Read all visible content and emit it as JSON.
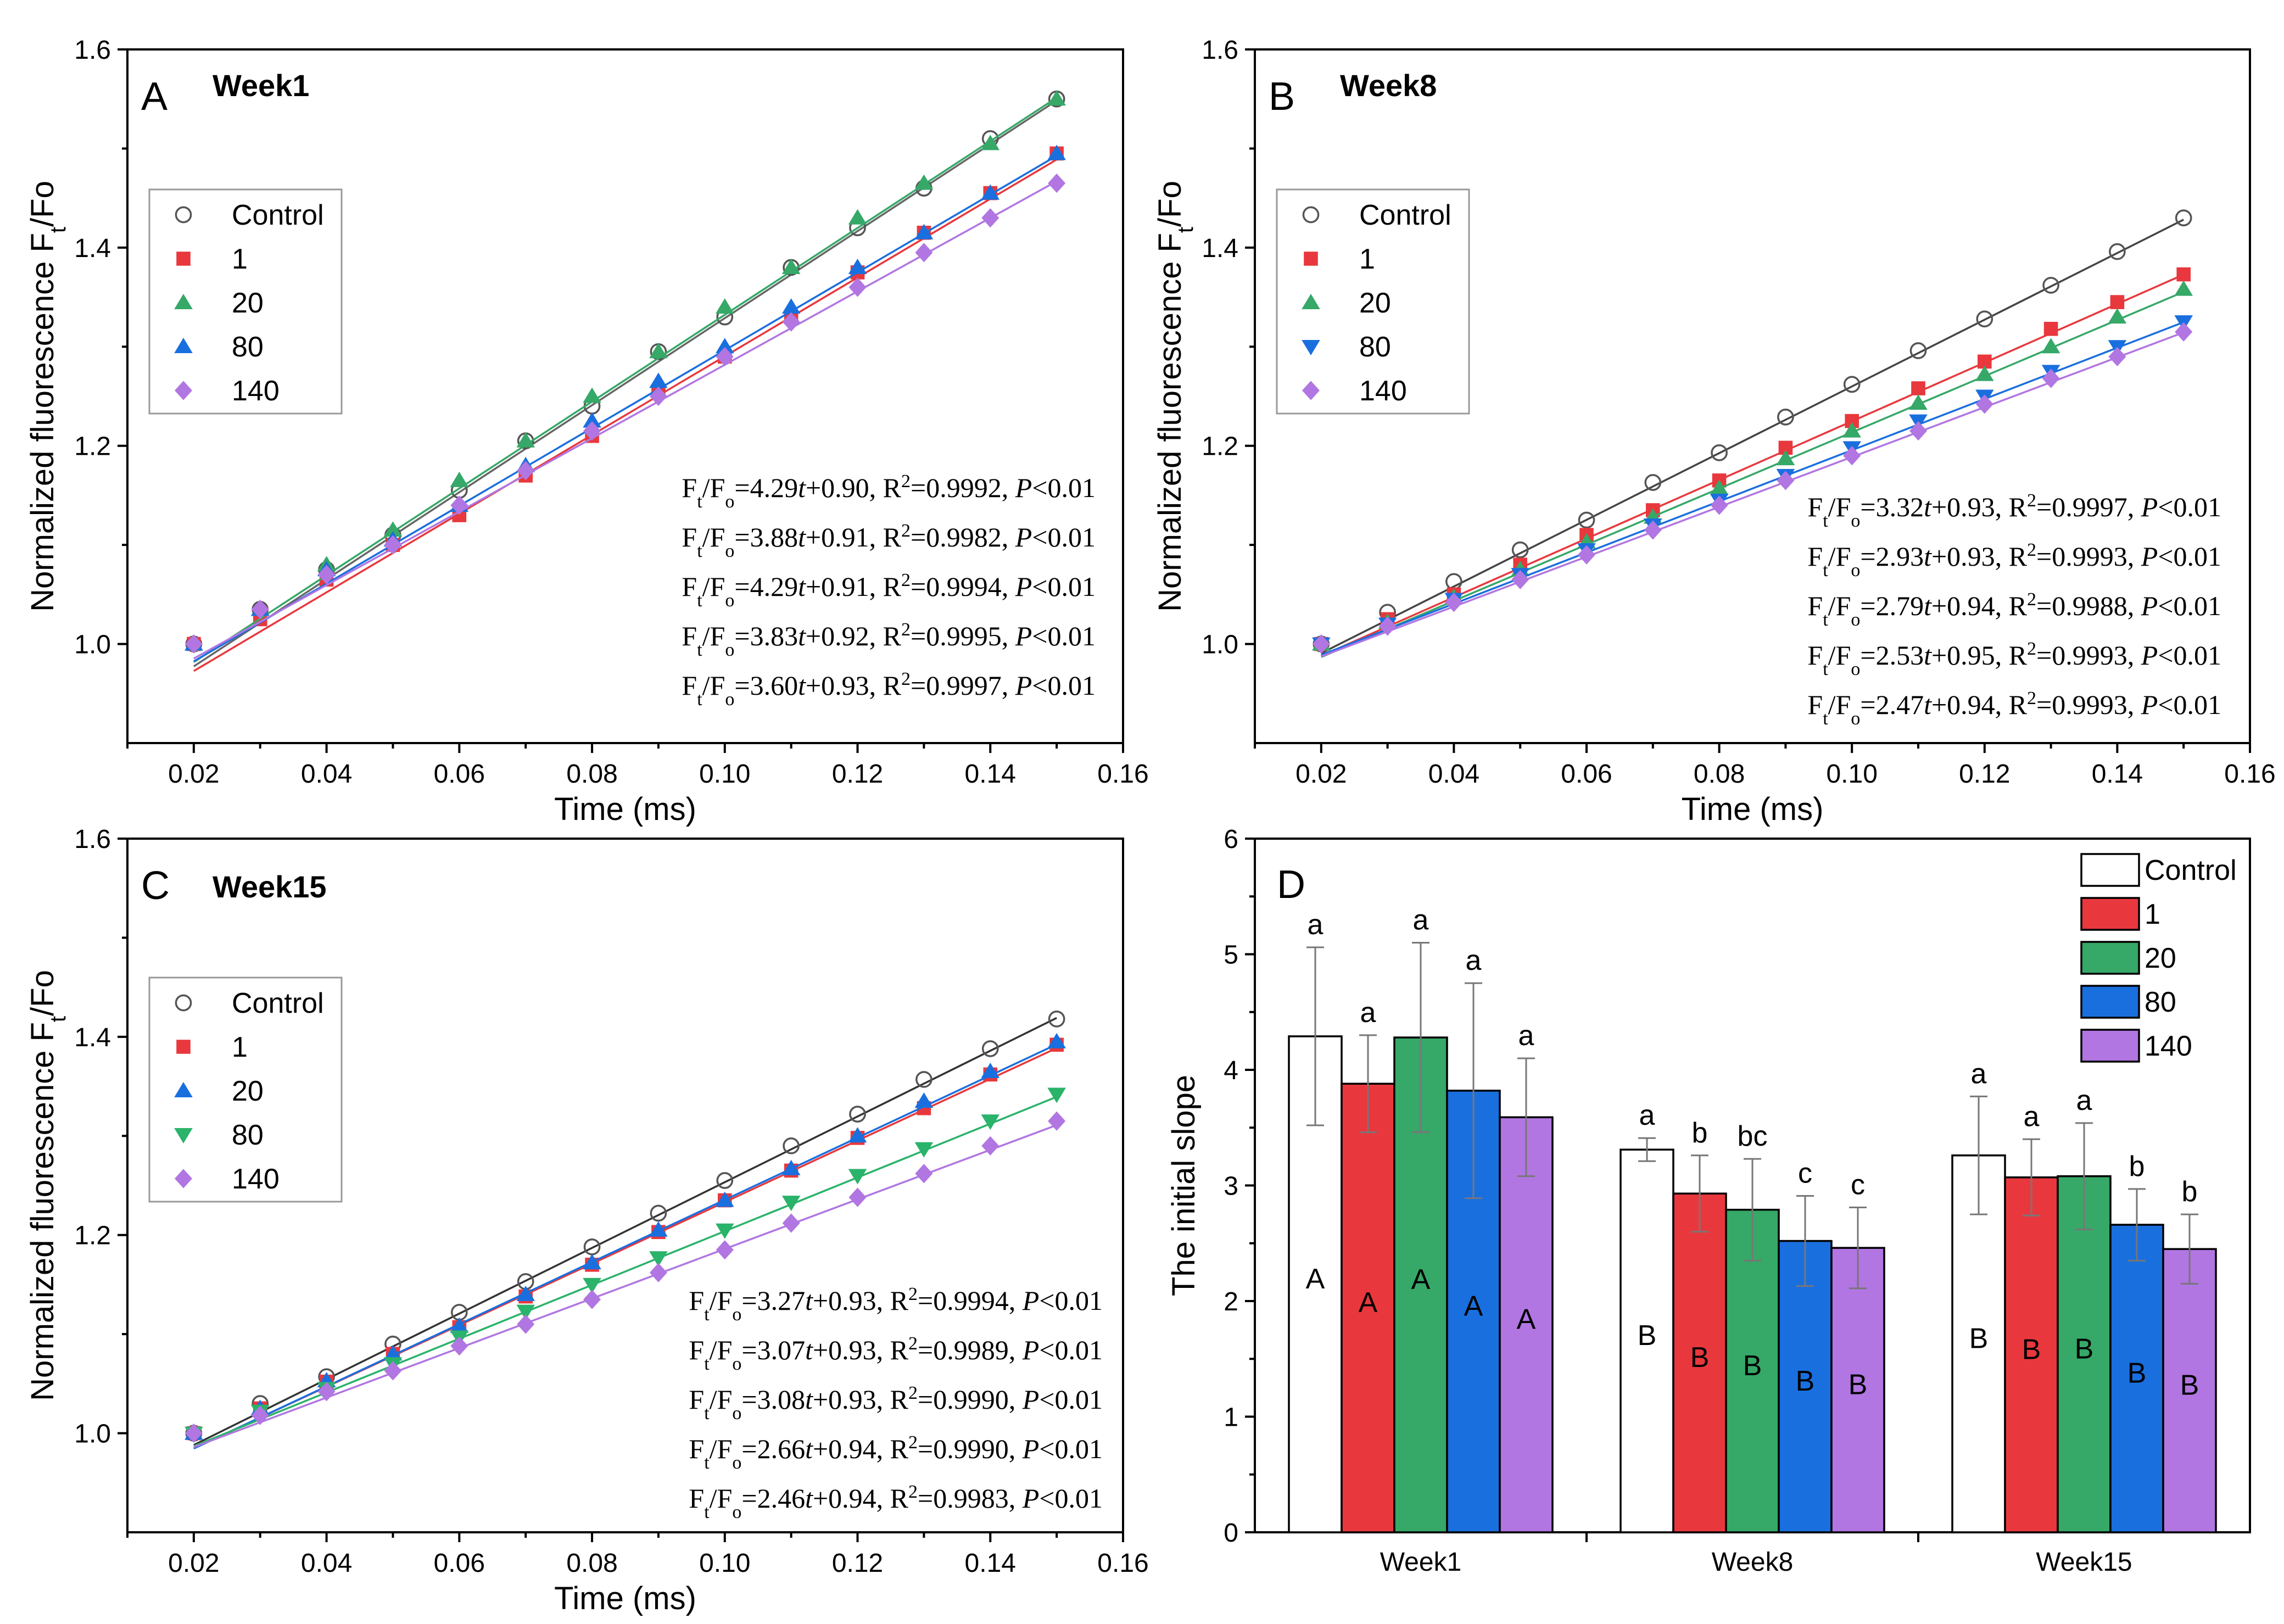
{
  "colors": {
    "Control": "#000000",
    "1": "#e8383d",
    "20": "#36a868",
    "80": "#1a6fdf",
    "140": "#b176e2",
    "80_week15": "#2ab36a"
  },
  "panels": [
    {
      "id": "A",
      "label": "A",
      "week": "Week1",
      "xlabel": "Time (ms)",
      "ylabel_main": "Normalized fluorescence F",
      "ylabel_sub": "t",
      "ylabel_tail": "/Fo",
      "xticks": [
        "0.02",
        "0.04",
        "0.06",
        "0.08",
        "0.10",
        "0.12",
        "0.14",
        "0.16"
      ],
      "yticks": [
        "1.0",
        "1.2",
        "1.4",
        "1.6"
      ],
      "legend": [
        {
          "label": "Control",
          "marker": "circle",
          "color_key": "Control"
        },
        {
          "label": "1",
          "marker": "square",
          "color_key": "1"
        },
        {
          "label": "20",
          "marker": "triangle-up",
          "color_key": "20"
        },
        {
          "label": "80",
          "marker": "triangle-up",
          "color_key": "80"
        },
        {
          "label": "140",
          "marker": "diamond",
          "color_key": "140"
        }
      ],
      "equations": [
        {
          "slope": "4.29",
          "icpt": "0.90",
          "r2": "0.9992",
          "p": "<0.01"
        },
        {
          "slope": "3.88",
          "icpt": "0.91",
          "r2": "0.9982",
          "p": "<0.01"
        },
        {
          "slope": "4.29",
          "icpt": "0.91",
          "r2": "0.9994",
          "p": "<0.01"
        },
        {
          "slope": "3.83",
          "icpt": "0.92",
          "r2": "0.9995",
          "p": "<0.01"
        },
        {
          "slope": "3.60",
          "icpt": "0.93",
          "r2": "0.9997",
          "p": "<0.01"
        }
      ]
    },
    {
      "id": "B",
      "label": "B",
      "week": "Week8",
      "xlabel": "Time (ms)",
      "ylabel_main": "Normalized fluorescence F",
      "ylabel_sub": "t",
      "ylabel_tail": "/Fo",
      "xticks": [
        "0.02",
        "0.04",
        "0.06",
        "0.08",
        "0.10",
        "0.12",
        "0.14",
        "0.16"
      ],
      "yticks": [
        "1.0",
        "1.2",
        "1.4",
        "1.6"
      ],
      "legend": [
        {
          "label": "Control",
          "marker": "circle",
          "color_key": "Control"
        },
        {
          "label": "1",
          "marker": "square",
          "color_key": "1"
        },
        {
          "label": "20",
          "marker": "triangle-up",
          "color_key": "20"
        },
        {
          "label": "80",
          "marker": "triangle-down",
          "color_key": "80"
        },
        {
          "label": "140",
          "marker": "diamond",
          "color_key": "140"
        }
      ],
      "equations": [
        {
          "slope": "3.32",
          "icpt": "0.93",
          "r2": "0.9997",
          "p": "<0.01"
        },
        {
          "slope": "2.93",
          "icpt": "0.93",
          "r2": "0.9993",
          "p": "<0.01"
        },
        {
          "slope": "2.79",
          "icpt": "0.94",
          "r2": "0.9988",
          "p": "<0.01"
        },
        {
          "slope": "2.53",
          "icpt": "0.95",
          "r2": "0.9993",
          "p": "<0.01"
        },
        {
          "slope": "2.47",
          "icpt": "0.94",
          "r2": "0.9993",
          "p": "<0.01"
        }
      ]
    },
    {
      "id": "C",
      "label": "C",
      "week": "Week15",
      "xlabel": "Time (ms)",
      "ylabel_main": "Normalized fluorescence F",
      "ylabel_sub": "t",
      "ylabel_tail": "/Fo",
      "xticks": [
        "0.02",
        "0.04",
        "0.06",
        "0.08",
        "0.10",
        "0.12",
        "0.14",
        "0.16"
      ],
      "yticks": [
        "1.0",
        "1.2",
        "1.4",
        "1.6"
      ],
      "legend": [
        {
          "label": "Control",
          "marker": "circle",
          "color_key": "Control"
        },
        {
          "label": "1",
          "marker": "square",
          "color_key": "1"
        },
        {
          "label": "20",
          "marker": "triangle-up",
          "color_key": "80"
        },
        {
          "label": "80",
          "marker": "triangle-down",
          "color_key": "80_week15"
        },
        {
          "label": "140",
          "marker": "diamond",
          "color_key": "140"
        }
      ],
      "equations": [
        {
          "slope": "3.27",
          "icpt": "0.93",
          "r2": "0.9994",
          "p": "<0.01"
        },
        {
          "slope": "3.07",
          "icpt": "0.93",
          "r2": "0.9989",
          "p": "<0.01"
        },
        {
          "slope": "3.08",
          "icpt": "0.93",
          "r2": "0.9990",
          "p": "<0.01"
        },
        {
          "slope": "2.66",
          "icpt": "0.94",
          "r2": "0.9990",
          "p": "<0.01"
        },
        {
          "slope": "2.46",
          "icpt": "0.94",
          "r2": "0.9983",
          "p": "<0.01"
        }
      ]
    }
  ],
  "chart_data": [
    {
      "type": "scatter",
      "panel": "A",
      "title": "Week1",
      "xlabel": "Time (ms)",
      "ylabel": "Normalized fluorescence Ft/Fo",
      "xlim": [
        0.01,
        0.16
      ],
      "ylim": [
        0.9,
        1.6
      ],
      "x": [
        0.02,
        0.03,
        0.04,
        0.05,
        0.06,
        0.07,
        0.08,
        0.09,
        0.1,
        0.11,
        0.12,
        0.13,
        0.14,
        0.15
      ],
      "series": [
        {
          "name": "Control",
          "values": [
            1.0,
            1.035,
            1.075,
            1.11,
            1.155,
            1.205,
            1.24,
            1.295,
            1.33,
            1.38,
            1.42,
            1.46,
            1.51,
            1.55
          ]
        },
        {
          "name": "1",
          "values": [
            1.0,
            1.025,
            1.065,
            1.1,
            1.13,
            1.17,
            1.21,
            1.255,
            1.29,
            1.33,
            1.375,
            1.415,
            1.455,
            1.495
          ]
        },
        {
          "name": "20",
          "values": [
            1.0,
            1.035,
            1.08,
            1.115,
            1.165,
            1.205,
            1.25,
            1.295,
            1.34,
            1.38,
            1.43,
            1.465,
            1.505,
            1.55
          ]
        },
        {
          "name": "80",
          "values": [
            1.0,
            1.035,
            1.075,
            1.105,
            1.14,
            1.18,
            1.225,
            1.265,
            1.3,
            1.34,
            1.38,
            1.415,
            1.455,
            1.495
          ]
        },
        {
          "name": "140",
          "values": [
            1.0,
            1.035,
            1.07,
            1.1,
            1.14,
            1.175,
            1.215,
            1.25,
            1.29,
            1.325,
            1.36,
            1.395,
            1.43,
            1.465
          ]
        }
      ]
    },
    {
      "type": "scatter",
      "panel": "B",
      "title": "Week8",
      "xlabel": "Time (ms)",
      "ylabel": "Normalized fluorescence Ft/Fo",
      "xlim": [
        0.01,
        0.16
      ],
      "ylim": [
        0.9,
        1.6
      ],
      "x": [
        0.02,
        0.03,
        0.04,
        0.05,
        0.06,
        0.07,
        0.08,
        0.09,
        0.1,
        0.11,
        0.12,
        0.13,
        0.14,
        0.15
      ],
      "series": [
        {
          "name": "Control",
          "values": [
            1.0,
            1.032,
            1.063,
            1.095,
            1.125,
            1.163,
            1.193,
            1.229,
            1.262,
            1.296,
            1.328,
            1.362,
            1.396,
            1.43
          ]
        },
        {
          "name": "1",
          "values": [
            1.0,
            1.025,
            1.05,
            1.08,
            1.11,
            1.135,
            1.165,
            1.198,
            1.225,
            1.258,
            1.285,
            1.318,
            1.345,
            1.373
          ]
        },
        {
          "name": "20",
          "values": [
            1.0,
            1.022,
            1.047,
            1.075,
            1.103,
            1.128,
            1.157,
            1.187,
            1.215,
            1.243,
            1.272,
            1.3,
            1.33,
            1.358
          ]
        },
        {
          "name": "80",
          "values": [
            1.0,
            1.02,
            1.045,
            1.07,
            1.095,
            1.12,
            1.145,
            1.17,
            1.198,
            1.225,
            1.25,
            1.275,
            1.3,
            1.325
          ]
        },
        {
          "name": "140",
          "values": [
            1.0,
            1.018,
            1.042,
            1.065,
            1.09,
            1.115,
            1.14,
            1.165,
            1.19,
            1.215,
            1.242,
            1.268,
            1.29,
            1.315
          ]
        }
      ]
    },
    {
      "type": "scatter",
      "panel": "C",
      "title": "Week15",
      "xlabel": "Time (ms)",
      "ylabel": "Normalized fluorescence Ft/Fo",
      "xlim": [
        0.01,
        0.16
      ],
      "ylim": [
        0.9,
        1.6
      ],
      "x": [
        0.02,
        0.03,
        0.04,
        0.05,
        0.06,
        0.07,
        0.08,
        0.09,
        0.1,
        0.11,
        0.12,
        0.13,
        0.14,
        0.15
      ],
      "series": [
        {
          "name": "Control",
          "values": [
            1.0,
            1.03,
            1.057,
            1.09,
            1.122,
            1.153,
            1.188,
            1.222,
            1.255,
            1.29,
            1.322,
            1.357,
            1.388,
            1.418
          ]
        },
        {
          "name": "1",
          "values": [
            1.0,
            1.025,
            1.052,
            1.08,
            1.107,
            1.138,
            1.17,
            1.203,
            1.235,
            1.265,
            1.298,
            1.328,
            1.362,
            1.392
          ]
        },
        {
          "name": "20",
          "values": [
            1.0,
            1.025,
            1.053,
            1.08,
            1.108,
            1.14,
            1.172,
            1.205,
            1.235,
            1.267,
            1.3,
            1.335,
            1.365,
            1.395
          ]
        },
        {
          "name": "80",
          "values": [
            1.0,
            1.022,
            1.045,
            1.07,
            1.097,
            1.123,
            1.15,
            1.177,
            1.205,
            1.233,
            1.26,
            1.287,
            1.315,
            1.342
          ]
        },
        {
          "name": "140",
          "values": [
            1.0,
            1.018,
            1.042,
            1.063,
            1.088,
            1.11,
            1.135,
            1.162,
            1.185,
            1.212,
            1.238,
            1.262,
            1.29,
            1.315
          ]
        }
      ]
    },
    {
      "type": "bar",
      "panel": "D",
      "title": "",
      "xlabel": "",
      "ylabel": "The initial slope",
      "ylim": [
        0,
        6
      ],
      "yticks": [
        "0",
        "1",
        "2",
        "3",
        "4",
        "5",
        "6"
      ],
      "categories": [
        "Week1",
        "Week8",
        "Week15"
      ],
      "series": [
        {
          "name": "Control",
          "values": [
            4.29,
            3.31,
            3.26
          ],
          "errors": [
            0.77,
            0.1,
            0.51
          ],
          "letters": [
            "a",
            "a",
            "a"
          ],
          "caps": [
            "A",
            "B",
            "B"
          ]
        },
        {
          "name": "1",
          "values": [
            3.88,
            2.93,
            3.07
          ],
          "errors": [
            0.42,
            0.33,
            0.33
          ],
          "letters": [
            "a",
            "b",
            "a"
          ],
          "caps": [
            "A",
            "B",
            "B"
          ]
        },
        {
          "name": "20",
          "values": [
            4.28,
            2.79,
            3.08
          ],
          "errors": [
            0.82,
            0.44,
            0.46
          ],
          "letters": [
            "a",
            "bc",
            "a"
          ],
          "caps": [
            "A",
            "B",
            "B"
          ]
        },
        {
          "name": "80",
          "values": [
            3.82,
            2.52,
            2.66
          ],
          "errors": [
            0.93,
            0.39,
            0.31
          ],
          "letters": [
            "a",
            "c",
            "b"
          ],
          "caps": [
            "A",
            "B",
            "B"
          ]
        },
        {
          "name": "140",
          "values": [
            3.59,
            2.46,
            2.45
          ],
          "errors": [
            0.51,
            0.35,
            0.3
          ],
          "letters": [
            "a",
            "c",
            "b"
          ],
          "caps": [
            "A",
            "B",
            "B"
          ]
        }
      ],
      "legend": [
        "Control",
        "1",
        "20",
        "80",
        "140"
      ],
      "label": "D"
    }
  ]
}
